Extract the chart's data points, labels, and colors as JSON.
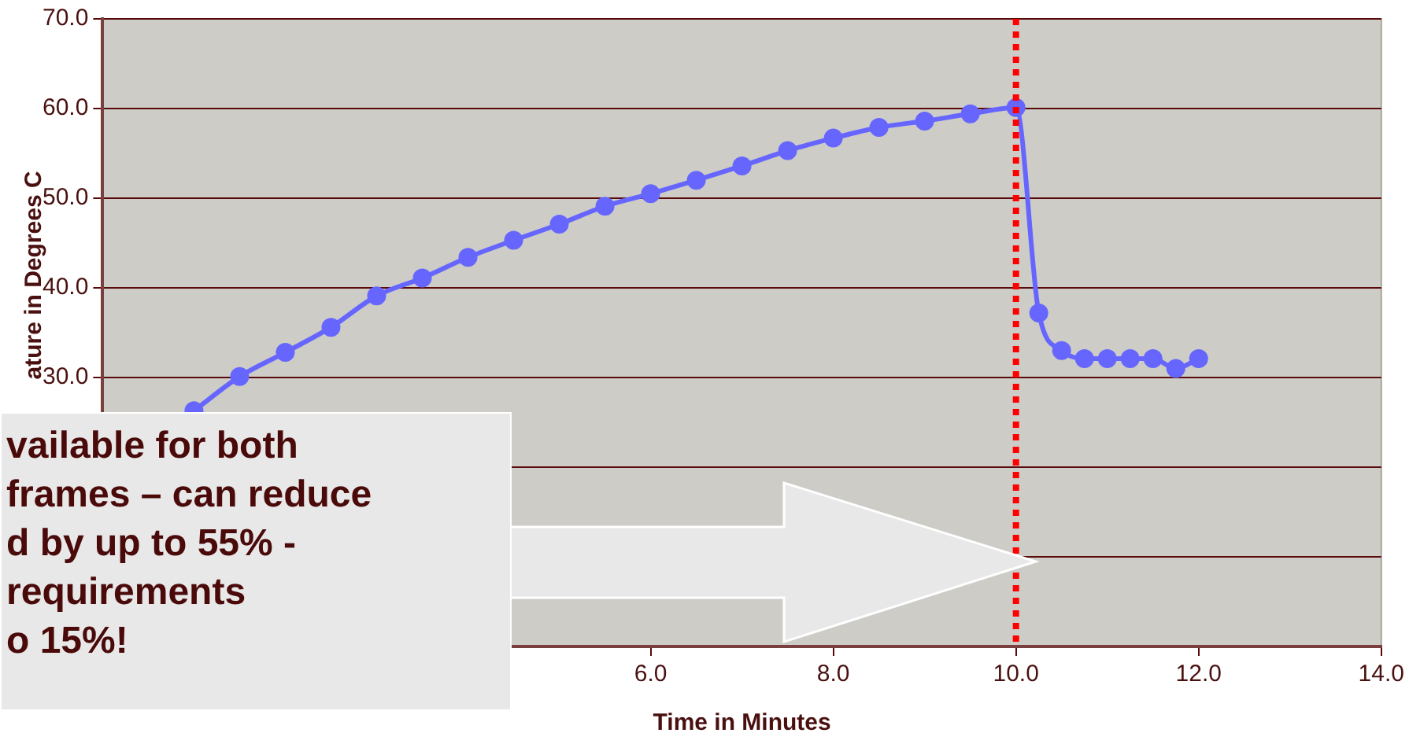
{
  "chart_data": {
    "type": "line",
    "xlabel": "Time in Minutes",
    "ylabel": "ature in Degrees C",
    "x": [
      1.0,
      1.5,
      2.0,
      2.5,
      3.0,
      3.5,
      4.0,
      4.5,
      5.0,
      5.5,
      6.0,
      6.5,
      7.0,
      7.5,
      8.0,
      8.5,
      9.0,
      9.5,
      10.0,
      10.25,
      10.5,
      10.75,
      11.0,
      11.25,
      11.5,
      11.75,
      12.0
    ],
    "series": [
      {
        "color": "#6666ff",
        "values": [
          26.3,
          30.1,
          32.8,
          35.6,
          39.1,
          41.1,
          43.4,
          45.3,
          47.1,
          49.1,
          50.5,
          52.0,
          53.6,
          55.3,
          56.7,
          57.9,
          58.6,
          59.4,
          60.1,
          37.2,
          33.0,
          32.1,
          32.1,
          32.1,
          32.1,
          31.0,
          32.1
        ]
      }
    ],
    "xlim": [
      0,
      14
    ],
    "xticks": [
      {
        "value": 0,
        "label": null
      },
      {
        "value": 2,
        "label": null
      },
      {
        "value": 4,
        "label": null
      },
      {
        "value": 6,
        "label": "6.0"
      },
      {
        "value": 8,
        "label": "8.0"
      },
      {
        "value": 10,
        "label": "10.0"
      },
      {
        "value": 12,
        "label": "12.0"
      },
      {
        "value": 14,
        "label": "14.0"
      }
    ],
    "ylim": [
      0,
      70
    ],
    "yticks": [
      {
        "value": 0,
        "label": null
      },
      {
        "value": 10,
        "label": null
      },
      {
        "value": 20,
        "label": null
      },
      {
        "value": 30,
        "label": "30.0"
      },
      {
        "value": 40,
        "label": "40.0"
      },
      {
        "value": 50,
        "label": "50.0"
      },
      {
        "value": 60,
        "label": "60.0"
      },
      {
        "value": 70,
        "label": "70.0"
      }
    ],
    "grid": "y",
    "legend": false,
    "marker": "circle",
    "line_style": "solid",
    "ref_lines": [
      {
        "axis": "x",
        "value": 10,
        "color": "#ff0000",
        "line_style": "dotted"
      }
    ],
    "annotations": [
      "vailable for both",
      "frames – can reduce",
      "d by up to 55% -",
      "requirements",
      "o 15%!"
    ]
  }
}
